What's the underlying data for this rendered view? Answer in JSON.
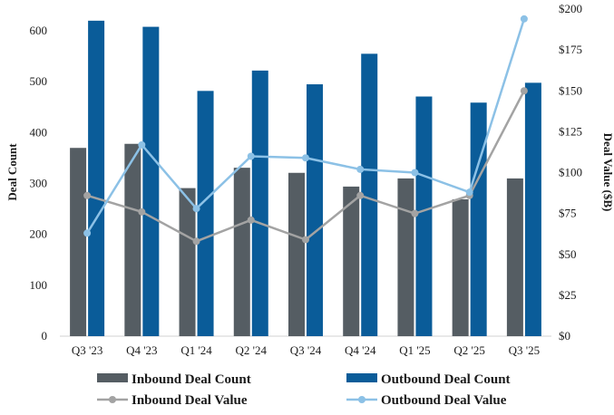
{
  "chart_data": {
    "type": "bar+line",
    "categories": [
      "Q3 '23",
      "Q4 '23",
      "Q1 '24",
      "Q2 '24",
      "Q3 '24",
      "Q4 '24",
      "Q1 '25",
      "Q2 '25",
      "Q3 '25"
    ],
    "bar_series": [
      {
        "name": "Inbound Deal Count",
        "color": "#555d63",
        "values": [
          370,
          378,
          291,
          331,
          321,
          294,
          310,
          269,
          310
        ]
      },
      {
        "name": "Outbound Deal Count",
        "color": "#0a5c99",
        "values": [
          620,
          608,
          482,
          522,
          495,
          555,
          471,
          459,
          498
        ]
      }
    ],
    "line_series": [
      {
        "name": "Inbound Deal Value",
        "color": "#a3a3a3",
        "values": [
          86,
          76,
          58,
          71,
          59,
          86,
          75,
          86,
          150
        ]
      },
      {
        "name": "Outbound Deal Value",
        "color": "#8cc1e6",
        "values": [
          63,
          117,
          78,
          110,
          109,
          102,
          100,
          88,
          194
        ]
      }
    ],
    "y_left": {
      "label": "Deal Count",
      "min": 0,
      "max": 650,
      "ticks": [
        0,
        100,
        200,
        300,
        400,
        500,
        600
      ],
      "tick_labels": [
        "0",
        "100",
        "200",
        "300",
        "400",
        "500",
        "600"
      ]
    },
    "y_right": {
      "label": "Deal Value ($B)",
      "min": 0,
      "max": 200,
      "ticks": [
        0,
        25,
        50,
        75,
        100,
        125,
        150,
        175,
        200
      ],
      "tick_labels": [
        "$0",
        "$25",
        "$50",
        "$75",
        "$100",
        "$125",
        "$150",
        "$175",
        "$200"
      ]
    },
    "legend_position": "bottom"
  }
}
